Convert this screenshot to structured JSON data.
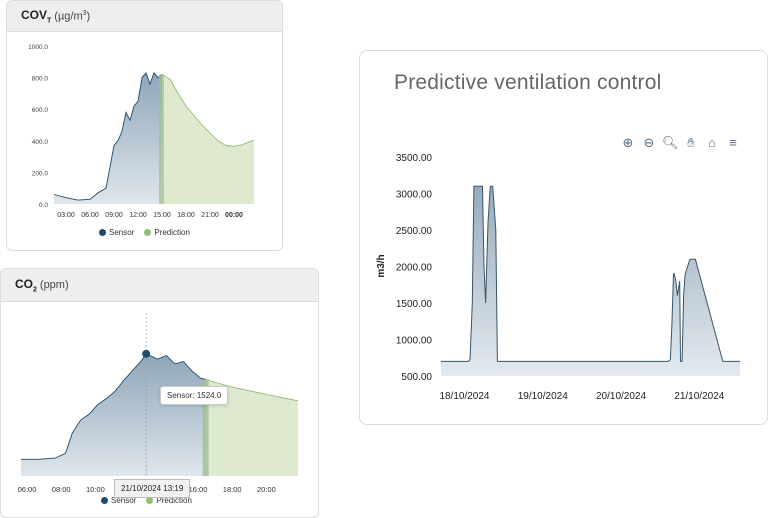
{
  "cov_card": {
    "title_main": "COV",
    "title_sub": "T",
    "unit_pre": "(µg/m",
    "unit_sup": "3",
    "unit_post": ")"
  },
  "co2_card": {
    "title_main": "CO",
    "title_sub": "2",
    "unit": "(ppm)",
    "tooltip_label": "Sensor:",
    "tooltip_value": "1524.0",
    "crosshair_label": "21/10/2024 13:19"
  },
  "vent_card": {
    "title": "Predictive ventilation control",
    "toolbar": [
      "zoom-in",
      "zoom-out",
      "zoom-select",
      "pan",
      "home",
      "menu"
    ]
  },
  "colors": {
    "sensor": "#1f4a6b",
    "sensor_fill": "#a9bccb",
    "prediction": "#8fbf6f",
    "prediction_fill": "#dfe9cf",
    "vent_fill": "#c6d3dd",
    "vent_line": "#3a5468"
  },
  "chart_data": [
    {
      "type": "area",
      "title": "COV_T (µg/m3)",
      "x_ticks": [
        "03:00",
        "06:00",
        "09:00",
        "12:00",
        "15:00",
        "18:00",
        "21:00",
        "00:00"
      ],
      "y_ticks": [
        "0.0",
        "200.0",
        "400.0",
        "600.0",
        "800.0",
        "1000.0"
      ],
      "ylim": [
        0,
        1000
      ],
      "xlim": [
        1.5,
        26.5
      ],
      "legend": [
        "Sensor",
        "Prediction"
      ],
      "legend_position": "bottom",
      "series": [
        {
          "name": "Sensor",
          "x": [
            1.5,
            3,
            4.5,
            6,
            7,
            8,
            9,
            9.5,
            10,
            10.5,
            11,
            11.5,
            12,
            12.5,
            13,
            13.5,
            14,
            14.5,
            15
          ],
          "values": [
            60,
            40,
            25,
            30,
            70,
            100,
            370,
            400,
            460,
            580,
            530,
            620,
            650,
            800,
            830,
            760,
            830,
            800,
            820
          ]
        },
        {
          "name": "Prediction",
          "x": [
            15,
            16,
            17,
            18,
            19,
            20,
            21,
            22,
            23,
            24,
            25,
            26.5
          ],
          "values": [
            820,
            790,
            700,
            620,
            560,
            500,
            450,
            400,
            370,
            365,
            375,
            405
          ]
        }
      ]
    },
    {
      "type": "area",
      "title": "CO2 (ppm)",
      "x_ticks": [
        "06:00",
        "08:00",
        "10:00",
        "12:00",
        "14:00",
        "16:00",
        "18:00",
        "20:00"
      ],
      "xlim": [
        6,
        22.2
      ],
      "ylim": [
        500,
        1900
      ],
      "legend": [
        "Sensor",
        "Prediction"
      ],
      "legend_position": "bottom",
      "series": [
        {
          "name": "Sensor",
          "x": [
            6,
            7,
            8,
            8.6,
            9,
            9.5,
            10,
            10.5,
            11,
            11.5,
            12,
            12.5,
            13,
            13.32,
            14,
            14.5,
            15,
            15.5,
            16,
            16.5,
            16.8
          ],
          "values": [
            640,
            640,
            650,
            690,
            860,
            970,
            1020,
            1100,
            1150,
            1210,
            1300,
            1380,
            1460,
            1524,
            1480,
            1510,
            1440,
            1460,
            1380,
            1320,
            1310
          ]
        },
        {
          "name": "Prediction",
          "x": [
            16.8,
            17.5,
            18.5,
            19.5,
            20.5,
            21.5,
            22.2
          ],
          "values": [
            1310,
            1280,
            1240,
            1210,
            1180,
            1150,
            1130
          ]
        }
      ]
    },
    {
      "type": "area",
      "title": "Predictive ventilation control",
      "ylabel": "m3/h",
      "x_ticks": [
        "18/10/2024",
        "19/10/2024",
        "20/10/2024",
        "21/10/2024"
      ],
      "y_ticks": [
        "500.00",
        "1000.00",
        "1500.00",
        "2000.00",
        "2500.00",
        "3000.00",
        "3500.00"
      ],
      "ylim": [
        500,
        3500
      ],
      "xlim": [
        -0.3,
        3.52
      ],
      "series": [
        {
          "name": "",
          "x": [
            -0.3,
            0.05,
            0.07,
            0.1,
            0.12,
            0.15,
            0.2,
            0.23,
            0.25,
            0.27,
            0.3,
            0.33,
            0.36,
            0.4,
            0.42,
            2.6,
            2.63,
            2.65,
            2.67,
            2.68,
            2.7,
            2.72,
            2.75,
            2.76,
            2.78,
            2.8,
            2.82,
            2.85,
            2.88,
            2.9,
            2.95,
            3.3,
            3.35,
            3.4,
            3.45,
            3.5,
            3.52
          ],
          "values": [
            700,
            700,
            720,
            1500,
            3100,
            3100,
            3100,
            3100,
            2000,
            1500,
            2600,
            3100,
            3100,
            2500,
            700,
            700,
            720,
            1200,
            1900,
            1900,
            1800,
            1600,
            1800,
            700,
            700,
            1600,
            1900,
            2000,
            2100,
            2100,
            2100,
            700,
            700,
            700,
            700,
            700,
            700
          ]
        }
      ]
    }
  ]
}
